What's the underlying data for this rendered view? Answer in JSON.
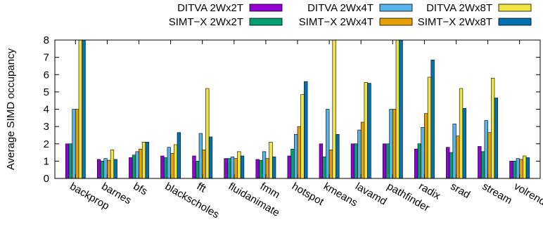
{
  "chart_data": {
    "type": "bar",
    "title": "",
    "xlabel": "",
    "ylabel": "Average SIMD occupancy",
    "ylim": [
      0,
      8
    ],
    "yticks": [
      0,
      1,
      2,
      3,
      4,
      5,
      6,
      7,
      8
    ],
    "grid": false,
    "legend_position": "top-right",
    "categories": [
      "backprop",
      "barnes",
      "bfs",
      "blackscholes",
      "fft",
      "fluidanimate",
      "fmm",
      "hotspot",
      "kmeans",
      "lavamd",
      "pathfinder",
      "radix",
      "srad",
      "stream",
      "volrend"
    ],
    "series": [
      {
        "name": "DITVA 2Wx2T",
        "color": "#9400d3",
        "values": [
          2.0,
          1.1,
          1.2,
          1.3,
          1.3,
          1.15,
          1.1,
          1.3,
          2.0,
          2.0,
          2.0,
          1.7,
          1.8,
          1.85,
          1.0
        ]
      },
      {
        "name": "SIMT−X 2Wx2T",
        "color": "#009e73",
        "values": [
          2.0,
          1.0,
          1.35,
          1.2,
          1.0,
          1.15,
          1.05,
          1.7,
          1.25,
          2.0,
          2.0,
          2.0,
          1.5,
          1.55,
          1.0
        ]
      },
      {
        "name": "DITVA 2Wx4T",
        "color": "#56b4e9",
        "values": [
          4.0,
          1.15,
          1.55,
          1.8,
          2.6,
          1.25,
          1.55,
          2.55,
          4.0,
          2.8,
          4.0,
          2.95,
          3.15,
          3.35,
          1.15
        ]
      },
      {
        "name": "SIMT−X 2Wx4T",
        "color": "#e69f00",
        "values": [
          4.0,
          1.05,
          1.7,
          1.45,
          1.65,
          1.15,
          1.15,
          3.0,
          1.65,
          3.25,
          4.0,
          3.75,
          2.45,
          2.65,
          1.1
        ]
      },
      {
        "name": "DITVA 2Wx8T",
        "color": "#f0e442",
        "values": [
          8.0,
          1.65,
          2.1,
          1.95,
          5.2,
          1.55,
          2.1,
          4.85,
          8.0,
          5.55,
          8.0,
          5.85,
          5.2,
          5.8,
          1.3
        ]
      },
      {
        "name": "SIMT−X 2Wx8T",
        "color": "#0072b2",
        "values": [
          8.0,
          1.1,
          2.1,
          2.65,
          2.4,
          1.3,
          1.25,
          5.6,
          2.55,
          5.5,
          8.0,
          6.85,
          4.05,
          4.65,
          1.2
        ]
      }
    ]
  }
}
